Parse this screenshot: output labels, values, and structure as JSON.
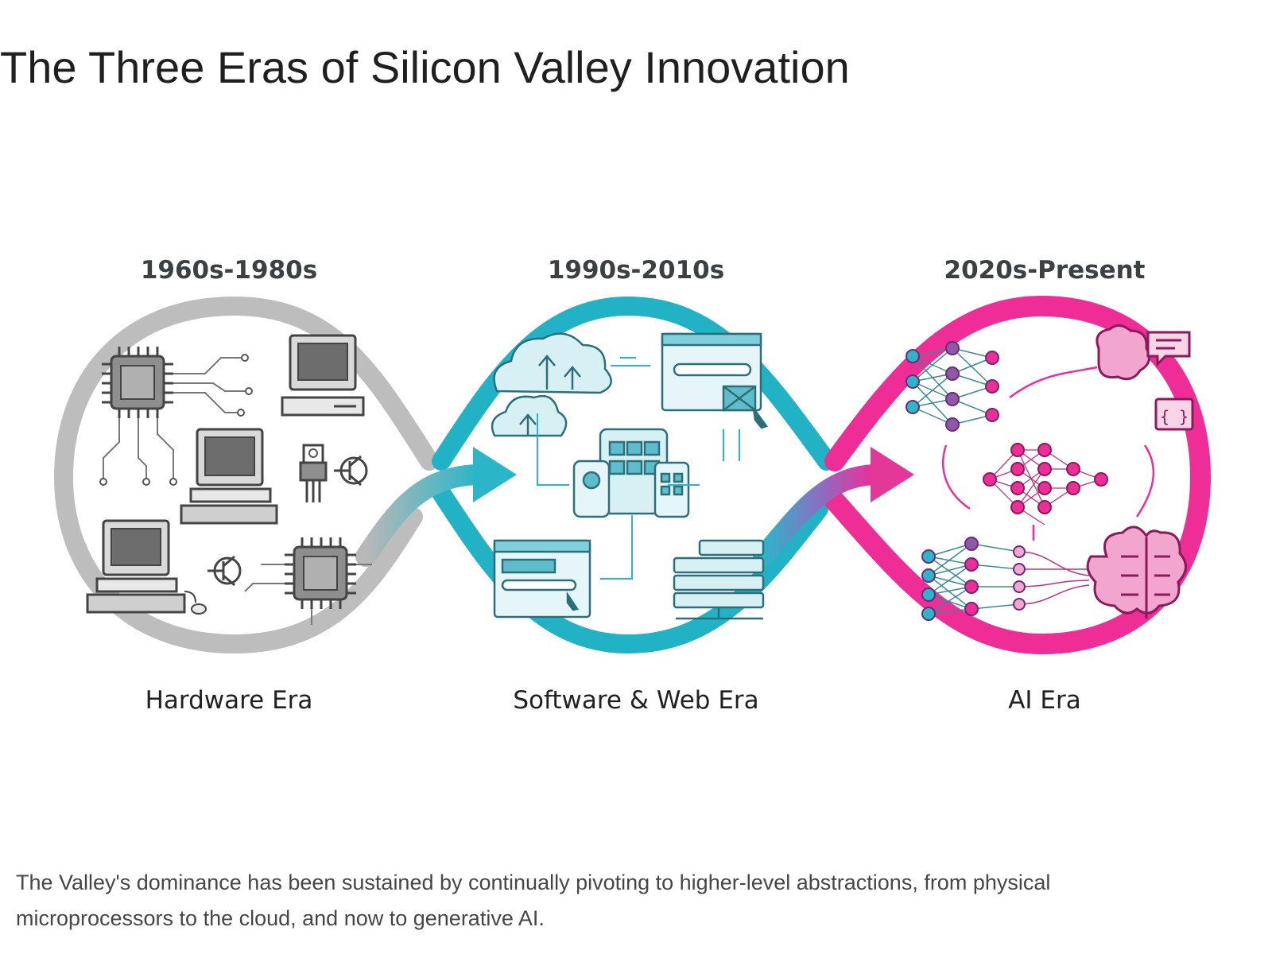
{
  "title": "The Three Eras of Silicon Valley Innovation",
  "eras": [
    {
      "date": "1960s-1980s",
      "name": "Hardware Era",
      "color": "#b5b5b5"
    },
    {
      "date": "1990s-2010s",
      "name": "Software & Web Era",
      "color": "#1fb3c6"
    },
    {
      "date": "2020s-Present",
      "name": "AI Era",
      "color": "#ee2d96"
    }
  ],
  "caption": "The Valley's dominance has been sustained by continually pivoting to higher-level abstractions, from physical microprocessors to the cloud, and now to generative AI.",
  "icons": {
    "hardware": [
      "microchip-icon",
      "desktop-computer-icon",
      "circuit-traces-icon",
      "transistor-icon"
    ],
    "software": [
      "cloud-upload-icon",
      "browser-window-icon",
      "mobile-tablet-icon",
      "server-rack-icon"
    ],
    "ai": [
      "neural-network-icon",
      "brain-icon",
      "chat-bubble-icon",
      "code-brackets-icon"
    ]
  }
}
